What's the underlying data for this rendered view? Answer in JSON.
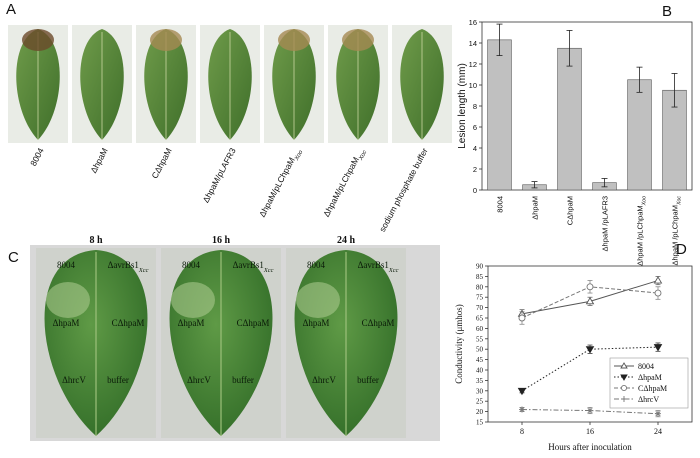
{
  "panel_a": {
    "letter": "A",
    "labels": [
      {
        "text": "8004"
      },
      {
        "text": "ΔhpaM"
      },
      {
        "text": "CΔhpaM"
      },
      {
        "text": "ΔhpaM/pLAFR3"
      },
      {
        "text": "ΔhpaM/pLChpaM",
        "sub": "Xoo"
      },
      {
        "text": "ΔhpaM/pLChpaM",
        "sub": "Xoc"
      },
      {
        "text": "sodium phosphate buffer"
      }
    ]
  },
  "panel_c": {
    "letter": "C",
    "frames": [
      "8 h",
      "16 h",
      "24 h"
    ],
    "labels": [
      {
        "text": "8004"
      },
      {
        "text": "ΔavrBs1",
        "sub": "Xcc"
      },
      {
        "text": "ΔhpaM"
      },
      {
        "text": "CΔhpaM"
      },
      {
        "text": "ΔhrcV"
      },
      {
        "text": "buffer"
      }
    ]
  },
  "chart_data": [
    {
      "type": "bar",
      "letter": "B",
      "ylabel": "Lesion length (mm)",
      "categories": [
        {
          "text": "8004"
        },
        {
          "text": "ΔhpaM"
        },
        {
          "text": "CΔhpaM"
        },
        {
          "text": "ΔhpaM /pLAFR3"
        },
        {
          "text": "ΔhpaM /pLChpaM",
          "sub": "Xoo"
        },
        {
          "text": "ΔhpaM /pLChpaM",
          "sub": "Xoc"
        }
      ],
      "values": [
        14.3,
        0.5,
        13.5,
        0.7,
        10.5,
        9.5
      ],
      "errors": [
        1.5,
        0.3,
        1.7,
        0.4,
        1.2,
        1.6
      ],
      "color": "#c0c0c0",
      "ylim": [
        0,
        16
      ],
      "yticks": [
        0,
        2,
        4,
        6,
        8,
        10,
        12,
        14,
        16
      ]
    },
    {
      "type": "line",
      "letter": "D",
      "xlabel": "Hours after inoculation",
      "ylabel": "Conductivity (μmhos)",
      "x": [
        8,
        16,
        24
      ],
      "xlim": [
        4,
        28
      ],
      "xticks": [
        8,
        16,
        24
      ],
      "ylim": [
        15,
        90
      ],
      "yticks": [
        15,
        20,
        25,
        30,
        35,
        40,
        45,
        50,
        55,
        60,
        65,
        70,
        75,
        80,
        85,
        90
      ],
      "legend": "right",
      "series": [
        {
          "name": "8004",
          "color": "#555555",
          "linestyle": "solid",
          "marker": "triangle-up",
          "values": [
            67,
            73,
            83
          ],
          "errors": [
            2,
            2,
            2
          ]
        },
        {
          "name": "ΔhpaM",
          "color": "#222222",
          "linestyle": "dotted",
          "marker": "triangle-down",
          "values": [
            30,
            50,
            51
          ],
          "errors": [
            1,
            2,
            2
          ]
        },
        {
          "name": "CΔhpaM",
          "color": "#777777",
          "linestyle": "dashed",
          "marker": "circle",
          "values": [
            65,
            80,
            77
          ],
          "errors": [
            3,
            3,
            3
          ]
        },
        {
          "name": "ΔhrcV",
          "color": "#777777",
          "linestyle": "dashdot",
          "marker": "star",
          "values": [
            21,
            20.5,
            19
          ],
          "errors": [
            1,
            1.5,
            1.5
          ]
        }
      ]
    }
  ]
}
